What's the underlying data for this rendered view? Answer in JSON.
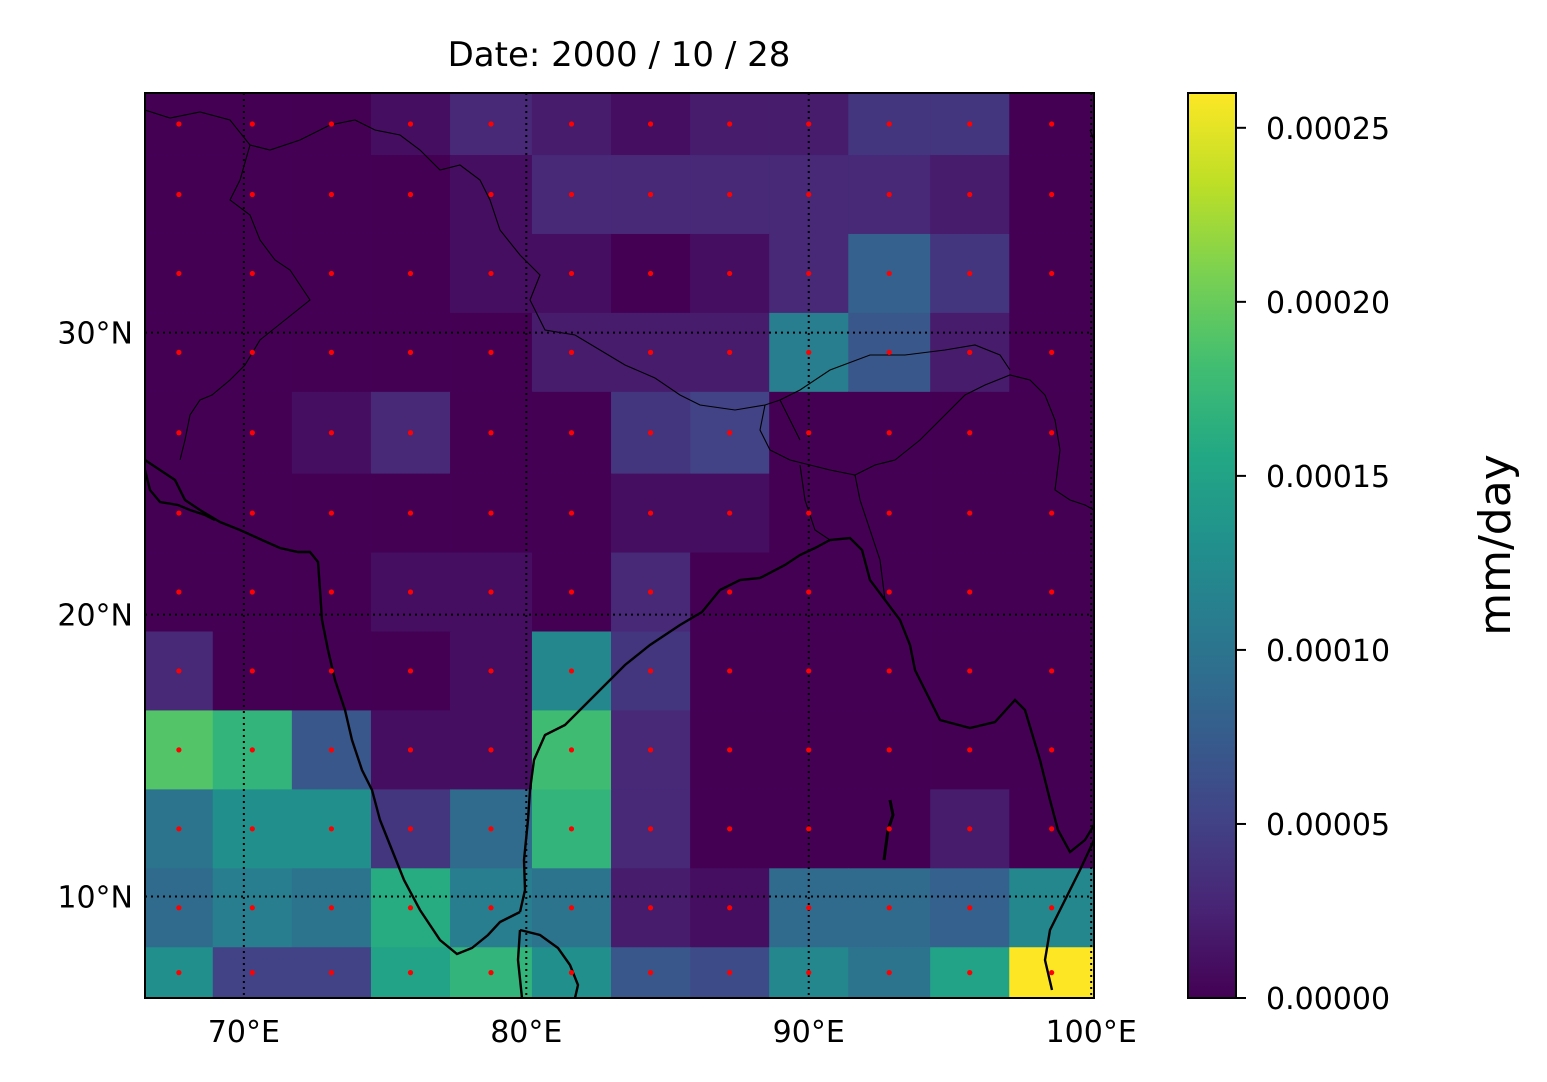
{
  "chart_data": {
    "type": "heatmap",
    "title": "Date: 2000 / 10 / 28",
    "x_ticks": [
      {
        "value": 70,
        "label": "70°E"
      },
      {
        "value": 80,
        "label": "80°E"
      },
      {
        "value": 90,
        "label": "90°E"
      },
      {
        "value": 100,
        "label": "100°E"
      }
    ],
    "y_ticks": [
      {
        "value": 10,
        "label": "10°N"
      },
      {
        "value": 20,
        "label": "20°N"
      },
      {
        "value": 30,
        "label": "30°N"
      }
    ],
    "xlim": [
      66.5,
      100.1
    ],
    "ylim": [
      6.4,
      38.5
    ],
    "grid": true,
    "grid_style": "dotted",
    "colormap": "viridis",
    "colorbar": {
      "label": "mm/day",
      "range": [
        0,
        0.00026
      ],
      "ticks": [
        {
          "value": 0.0,
          "label": "0.00000"
        },
        {
          "value": 5e-05,
          "label": "0.00005"
        },
        {
          "value": 0.0001,
          "label": "0.00010"
        },
        {
          "value": 0.00015,
          "label": "0.00015"
        },
        {
          "value": 0.0002,
          "label": "0.00020"
        },
        {
          "value": 0.00025,
          "label": "0.00025"
        }
      ]
    },
    "grid_lon_edges": [
      66.5,
      68.9,
      71.7,
      74.5,
      77.3,
      80.2,
      83.0,
      85.8,
      88.6,
      91.4,
      94.3,
      97.1,
      100.1
    ],
    "grid_lat_edges": [
      38.5,
      36.3,
      33.5,
      30.7,
      27.9,
      25.0,
      22.2,
      19.4,
      16.6,
      13.8,
      11.0,
      8.2,
      6.4
    ],
    "values_x1e5": [
      [
        0,
        0,
        0,
        1,
        3,
        2,
        1,
        2,
        2,
        4,
        4,
        0
      ],
      [
        0,
        0,
        0,
        0,
        1,
        3,
        3,
        3,
        3,
        3,
        2,
        0
      ],
      [
        0,
        0,
        0,
        0,
        1,
        1,
        0,
        1,
        3,
        8,
        4,
        0
      ],
      [
        0,
        0,
        0,
        0,
        0,
        2,
        2,
        2,
        11,
        7,
        2,
        0
      ],
      [
        0,
        0,
        1,
        3,
        0,
        0,
        4,
        5,
        0,
        0,
        0,
        0
      ],
      [
        0,
        0,
        0,
        0,
        0,
        0,
        1,
        1,
        0,
        0,
        0,
        0
      ],
      [
        0,
        0,
        0,
        1,
        1,
        0,
        3,
        0,
        0,
        0,
        0,
        0
      ],
      [
        3,
        0,
        0,
        0,
        1,
        12,
        4,
        0,
        0,
        0,
        0,
        0
      ],
      [
        19,
        17,
        7,
        1,
        1,
        18,
        3,
        0,
        0,
        0,
        0,
        0
      ],
      [
        10,
        13,
        13,
        4,
        9,
        17,
        3,
        0,
        0,
        0,
        2,
        0
      ],
      [
        9,
        11,
        10,
        16,
        11,
        10,
        2,
        1,
        9,
        9,
        8,
        12
      ],
      [
        13,
        5,
        5,
        15,
        17,
        13,
        7,
        6,
        12,
        10,
        15,
        26
      ]
    ],
    "values_unit_scale": 1e-05,
    "sample_points_color": "#ff0000"
  }
}
